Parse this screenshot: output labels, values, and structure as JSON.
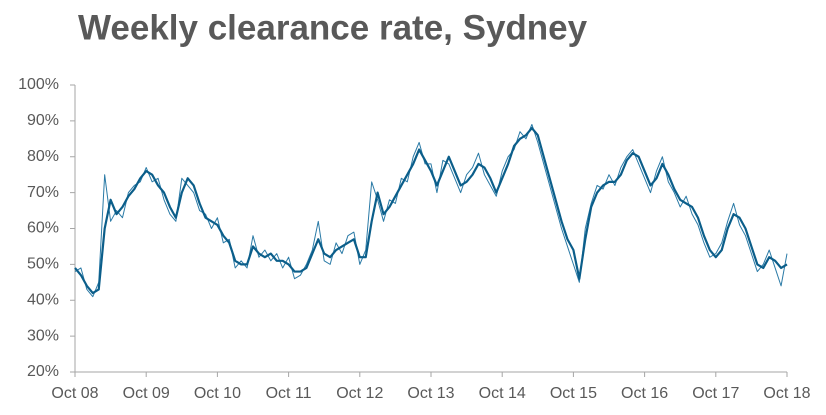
{
  "chart_data": {
    "type": "line",
    "title": "Weekly clearance rate, Sydney",
    "x": [
      "Oct 08",
      "Nov 08",
      "Dec 08",
      "Jan 09",
      "Feb 09",
      "Mar 09",
      "Apr 09",
      "May 09",
      "Jun 09",
      "Jul 09",
      "Aug 09",
      "Sep 09",
      "Oct 09",
      "Nov 09",
      "Dec 09",
      "Jan 10",
      "Feb 10",
      "Mar 10",
      "Apr 10",
      "May 10",
      "Jun 10",
      "Jul 10",
      "Aug 10",
      "Sep 10",
      "Oct 10",
      "Nov 10",
      "Dec 10",
      "Jan 11",
      "Feb 11",
      "Mar 11",
      "Apr 11",
      "May 11",
      "Jun 11",
      "Jul 11",
      "Aug 11",
      "Sep 11",
      "Oct 11",
      "Nov 11",
      "Dec 11",
      "Jan 12",
      "Feb 12",
      "Mar 12",
      "Apr 12",
      "May 12",
      "Jun 12",
      "Jul 12",
      "Aug 12",
      "Sep 12",
      "Oct 12",
      "Nov 12",
      "Dec 12",
      "Jan 13",
      "Feb 13",
      "Mar 13",
      "Apr 13",
      "May 13",
      "Jun 13",
      "Jul 13",
      "Aug 13",
      "Sep 13",
      "Oct 13",
      "Nov 13",
      "Dec 13",
      "Jan 14",
      "Feb 14",
      "Mar 14",
      "Apr 14",
      "May 14",
      "Jun 14",
      "Jul 14",
      "Aug 14",
      "Sep 14",
      "Oct 14",
      "Nov 14",
      "Dec 14",
      "Jan 15",
      "Feb 15",
      "Mar 15",
      "Apr 15",
      "May 15",
      "Jun 15",
      "Jul 15",
      "Aug 15",
      "Sep 15",
      "Oct 15",
      "Nov 15",
      "Dec 15",
      "Jan 16",
      "Feb 16",
      "Mar 16",
      "Apr 16",
      "May 16",
      "Jun 16",
      "Jul 16",
      "Aug 16",
      "Sep 16",
      "Oct 16",
      "Nov 16",
      "Dec 16",
      "Jan 17",
      "Feb 17",
      "Mar 17",
      "Apr 17",
      "May 17",
      "Jun 17",
      "Jul 17",
      "Aug 17",
      "Sep 17",
      "Oct 17",
      "Nov 17",
      "Dec 17",
      "Jan 18",
      "Feb 18",
      "Mar 18",
      "Apr 18",
      "May 18",
      "Jun 18",
      "Jul 18",
      "Aug 18",
      "Sep 18",
      "Oct 18"
    ],
    "series": [
      {
        "color": "#2a7aa6",
        "width": 1,
        "values": [
          48,
          49,
          43,
          41,
          45,
          75,
          62,
          65,
          63,
          70,
          72,
          73,
          77,
          73,
          74,
          68,
          64,
          62,
          74,
          72,
          70,
          65,
          64,
          60,
          63,
          56,
          57,
          49,
          51,
          49,
          58,
          52,
          54,
          51,
          53,
          49,
          52,
          46,
          47,
          50,
          54,
          62,
          51,
          50,
          56,
          53,
          58,
          59,
          50,
          54,
          73,
          68,
          62,
          68,
          67,
          74,
          73,
          80,
          84,
          78,
          78,
          70,
          79,
          78,
          74,
          70,
          75,
          77,
          81,
          75,
          72,
          69,
          76,
          80,
          82,
          87,
          85,
          89,
          84,
          78,
          72,
          66,
          60,
          55,
          50,
          45,
          60,
          67,
          72,
          71,
          75,
          72,
          77,
          80,
          82,
          78,
          74,
          70,
          76,
          80,
          73,
          70,
          66,
          69,
          64,
          61,
          56,
          52,
          53,
          56,
          62,
          67,
          61,
          58,
          53,
          48,
          50,
          54,
          49,
          44,
          53
        ]
      },
      {
        "color": "#0b5e8a",
        "width": 2.2,
        "values": [
          49,
          47,
          44,
          42,
          43,
          60,
          68,
          64,
          66,
          69,
          71,
          74,
          76,
          75,
          72,
          70,
          66,
          63,
          70,
          74,
          72,
          67,
          63,
          62,
          61,
          58,
          56,
          51,
          50,
          50,
          55,
          53,
          52,
          53,
          51,
          51,
          50,
          48,
          48,
          49,
          53,
          57,
          53,
          52,
          54,
          55,
          56,
          57,
          52,
          52,
          62,
          70,
          64,
          66,
          69,
          72,
          75,
          78,
          82,
          79,
          76,
          72,
          76,
          80,
          76,
          72,
          73,
          75,
          78,
          77,
          74,
          70,
          74,
          78,
          83,
          85,
          86,
          88,
          86,
          80,
          74,
          68,
          62,
          57,
          54,
          46,
          57,
          66,
          70,
          72,
          73,
          73,
          75,
          79,
          81,
          80,
          76,
          72,
          74,
          78,
          75,
          71,
          68,
          67,
          66,
          63,
          58,
          54,
          52,
          54,
          60,
          64,
          63,
          60,
          55,
          50,
          49,
          52,
          51,
          49,
          50
        ]
      }
    ],
    "xlim": [
      "Oct 08",
      "Oct 18"
    ],
    "xticks": [
      "Oct 08",
      "Oct 09",
      "Oct 10",
      "Oct 11",
      "Oct 12",
      "Oct 13",
      "Oct 14",
      "Oct 15",
      "Oct 16",
      "Oct 17",
      "Oct 18"
    ],
    "ylim": [
      20,
      100
    ],
    "yticks": [
      {
        "value": 20,
        "label": "20%"
      },
      {
        "value": 30,
        "label": "30%"
      },
      {
        "value": 40,
        "label": "40%"
      },
      {
        "value": 50,
        "label": "50%"
      },
      {
        "value": 60,
        "label": "60%"
      },
      {
        "value": 70,
        "label": "70%"
      },
      {
        "value": 80,
        "label": "80%"
      },
      {
        "value": 90,
        "label": "90%"
      },
      {
        "value": 100,
        "label": "100%"
      }
    ],
    "grid": false
  }
}
